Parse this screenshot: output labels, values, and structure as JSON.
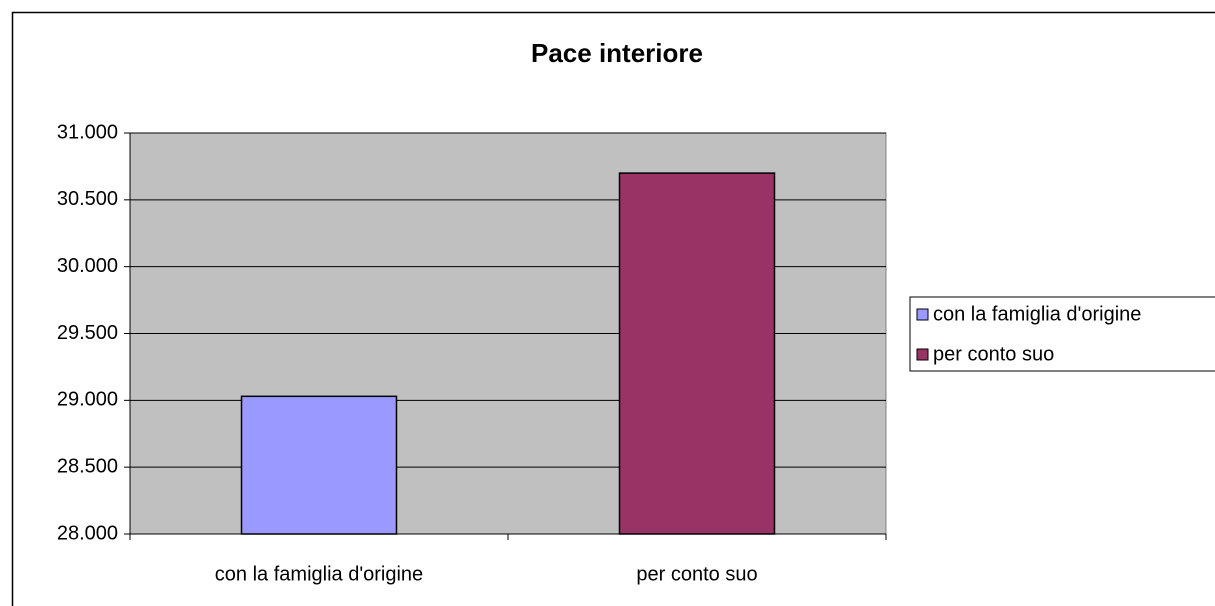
{
  "chart_data": {
    "type": "bar",
    "title": "Pace interiore",
    "categories": [
      "con la famiglia d'origine",
      "per conto suo"
    ],
    "values": [
      29.03,
      30.7
    ],
    "colors": [
      "#9999ff",
      "#993366"
    ],
    "ylim": [
      28,
      31
    ],
    "yticks": [
      {
        "value": 28,
        "label": "28.000"
      },
      {
        "value": 28.5,
        "label": "28.500"
      },
      {
        "value": 29,
        "label": "29.000"
      },
      {
        "value": 29.5,
        "label": "29.500"
      },
      {
        "value": 30,
        "label": "30.000"
      },
      {
        "value": 30.5,
        "label": "30.500"
      },
      {
        "value": 31,
        "label": "31.000"
      }
    ],
    "grid": true,
    "legend": "right"
  }
}
